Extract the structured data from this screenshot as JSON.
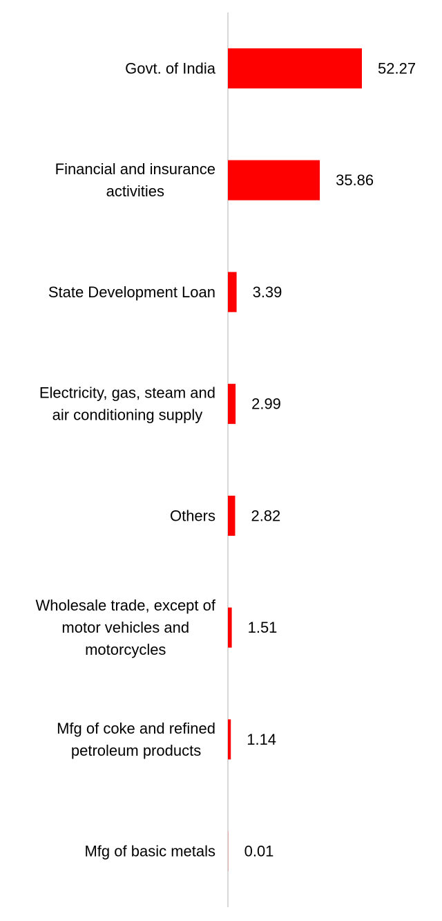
{
  "chart_data": {
    "type": "bar",
    "orientation": "horizontal",
    "title": "",
    "xlabel": "",
    "ylabel": "",
    "categories": [
      "Govt. of India",
      "Financial and insurance activities",
      "State Development Loan",
      "Electricity, gas, steam and air conditioning supply",
      "Others",
      "Wholesale trade, except of motor vehicles and motorcycles",
      "Mfg of coke and refined petroleum products",
      "Mfg of basic metals"
    ],
    "category_lines": [
      [
        "Govt. of India"
      ],
      [
        "Financial and insurance",
        "activities"
      ],
      [
        "State Development Loan"
      ],
      [
        "Electricity, gas, steam and",
        "air conditioning supply"
      ],
      [
        "Others"
      ],
      [
        "Wholesale trade, except of",
        "motor vehicles and",
        "motorcycles"
      ],
      [
        "Mfg of coke and refined",
        "petroleum products"
      ],
      [
        "Mfg of basic metals"
      ]
    ],
    "values": [
      52.27,
      35.86,
      3.39,
      2.99,
      2.82,
      1.51,
      1.14,
      0.01
    ],
    "value_labels": [
      "52.27",
      "35.86",
      "3.39",
      "2.99",
      "2.82",
      "1.51",
      "1.14",
      "0.01"
    ],
    "xlim": [
      0,
      52.27
    ],
    "grid": false,
    "legend": "none",
    "bar_color": "#ff0000",
    "axis_color": "#d9d9d9"
  }
}
